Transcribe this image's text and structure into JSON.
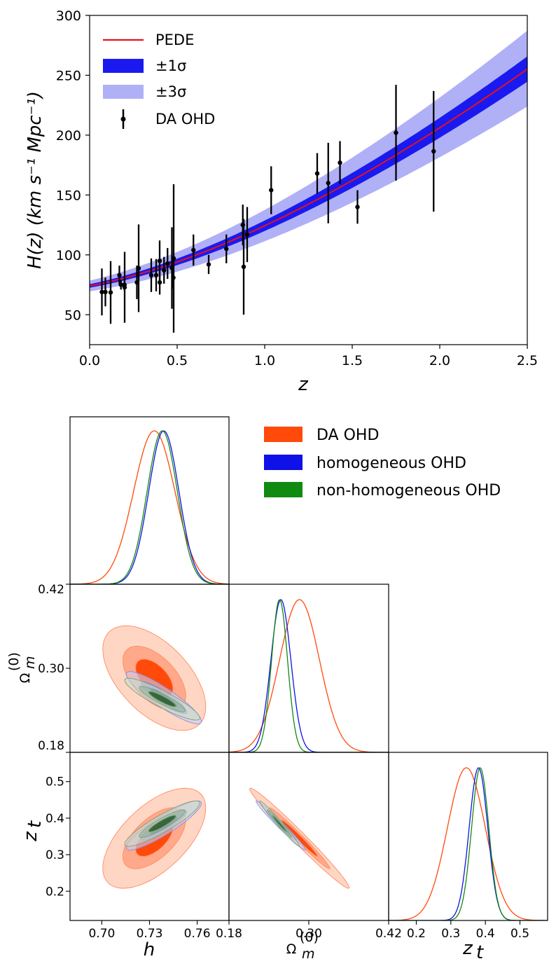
{
  "chart_data": [
    {
      "type": "line",
      "xlabel": "z",
      "ylabel": "H(z) (km s⁻¹ Mpc⁻¹)",
      "xlim": [
        0,
        2.5
      ],
      "ylim": [
        25,
        300
      ],
      "x_ticks": [
        "0.0",
        "0.5",
        "1.0",
        "1.5",
        "2.0",
        "2.5"
      ],
      "y_ticks": [
        "50",
        "100",
        "150",
        "200",
        "250",
        "300"
      ],
      "legend": [
        "PEDE",
        "±1σ",
        "±3σ",
        "DA OHD"
      ],
      "colors": {
        "model": "#e8101a",
        "band1": "#1a1af0",
        "band3": "#b0b0f7",
        "points": "#000000"
      },
      "model": {
        "H0": 74,
        "Om": 0.26
      },
      "band": {
        "sigma1_H0": 1.5,
        "sigma1_Om": 0.012
      },
      "points": [
        {
          "z": 0.07,
          "H": 69,
          "err": 19.6
        },
        {
          "z": 0.09,
          "H": 69,
          "err": 12
        },
        {
          "z": 0.12,
          "H": 68.6,
          "err": 26.2
        },
        {
          "z": 0.17,
          "H": 83,
          "err": 8
        },
        {
          "z": 0.179,
          "H": 75,
          "err": 4
        },
        {
          "z": 0.199,
          "H": 75,
          "err": 5
        },
        {
          "z": 0.2,
          "H": 72.9,
          "err": 29.6
        },
        {
          "z": 0.27,
          "H": 77,
          "err": 14
        },
        {
          "z": 0.28,
          "H": 88.8,
          "err": 36.6
        },
        {
          "z": 0.352,
          "H": 83,
          "err": 14
        },
        {
          "z": 0.38,
          "H": 83,
          "err": 13.5
        },
        {
          "z": 0.4,
          "H": 95,
          "err": 17
        },
        {
          "z": 0.4004,
          "H": 77,
          "err": 10.2
        },
        {
          "z": 0.425,
          "H": 87.1,
          "err": 11.2
        },
        {
          "z": 0.445,
          "H": 92.8,
          "err": 12.9
        },
        {
          "z": 0.47,
          "H": 89,
          "err": 34
        },
        {
          "z": 0.4783,
          "H": 80.9,
          "err": 9
        },
        {
          "z": 0.48,
          "H": 97,
          "err": 62
        },
        {
          "z": 0.593,
          "H": 104,
          "err": 13
        },
        {
          "z": 0.68,
          "H": 92,
          "err": 8
        },
        {
          "z": 0.781,
          "H": 105,
          "err": 12
        },
        {
          "z": 0.875,
          "H": 125,
          "err": 17
        },
        {
          "z": 0.88,
          "H": 90,
          "err": 40
        },
        {
          "z": 0.9,
          "H": 117,
          "err": 23
        },
        {
          "z": 1.037,
          "H": 154,
          "err": 20
        },
        {
          "z": 1.3,
          "H": 168,
          "err": 17
        },
        {
          "z": 1.363,
          "H": 160,
          "err": 33.6
        },
        {
          "z": 1.43,
          "H": 177,
          "err": 18
        },
        {
          "z": 1.53,
          "H": 140,
          "err": 14
        },
        {
          "z": 1.75,
          "H": 202,
          "err": 40
        },
        {
          "z": 1.965,
          "H": 186.5,
          "err": 50.4
        }
      ]
    },
    {
      "type": "triangle",
      "parameters": [
        "h",
        "Ω_m^(0)",
        "z_t"
      ],
      "labels": {
        "h": "h",
        "om": "Ω",
        "om_sub": "m",
        "om_sup": "(0)",
        "zt": "z",
        "zt_sub": "t"
      },
      "legend": [
        "DA OHD",
        "homogeneous OHD",
        "non-homogeneous OHD"
      ],
      "colors": {
        "da": "#ff4a0a",
        "homo": "#1010e8",
        "nonhomo": "#118a11"
      },
      "ranges": {
        "h": [
          0.68,
          0.78
        ],
        "om": [
          0.18,
          0.42
        ],
        "zt": [
          0.12,
          0.58
        ]
      },
      "h_ticks": [
        "0.70",
        "0.73",
        "0.76"
      ],
      "om_ticks_y": [
        "0.18",
        "0.30",
        "0.42"
      ],
      "om_ticks_x": [
        "0.18",
        "0.30",
        "0.42"
      ],
      "zt_ticks_y": [
        "0.2",
        "0.3",
        "0.4",
        "0.5"
      ],
      "zt_ticks_x": [
        "0.2",
        "0.3",
        "0.4",
        "0.5"
      ],
      "posteriors": {
        "da": {
          "h": [
            0.733,
            0.013
          ],
          "om": [
            0.286,
            0.03
          ],
          "zt": [
            0.345,
            0.055
          ]
        },
        "homo": {
          "h": [
            0.739,
            0.0095
          ],
          "om": [
            0.258,
            0.015
          ],
          "zt": [
            0.38,
            0.027
          ]
        },
        "nonhomo": {
          "h": [
            0.738,
            0.0095
          ],
          "om": [
            0.256,
            0.012
          ],
          "zt": [
            0.385,
            0.025
          ]
        }
      },
      "correlations": {
        "da": {
          "h_om": -0.55,
          "h_zt": 0.6,
          "om_zt": -0.985
        },
        "homo": {
          "h_om": -0.9,
          "h_zt": 0.9,
          "om_zt": -0.985
        },
        "nonhomo": {
          "h_om": -0.9,
          "h_zt": 0.9,
          "om_zt": -0.985
        }
      }
    }
  ]
}
